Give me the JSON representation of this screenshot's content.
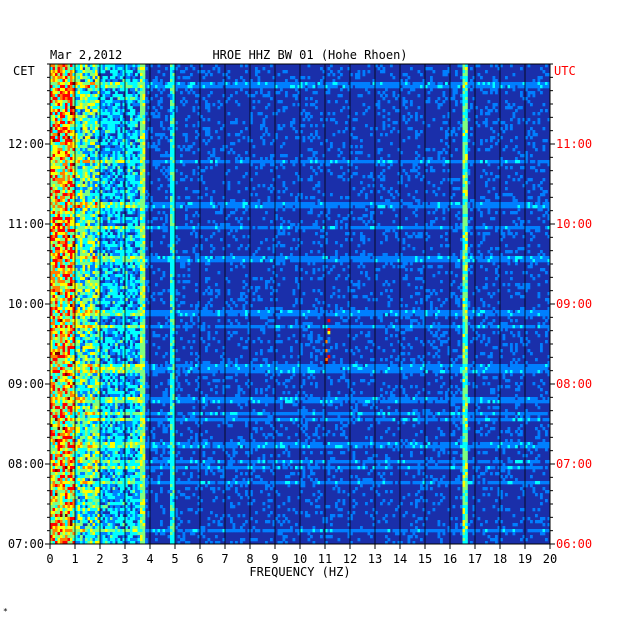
{
  "chart_data": {
    "type": "heatmap",
    "date": "Mar 2,2012",
    "title": "HROE HHZ BW 01 (Hohe Rhoen)",
    "left_axis_label": "CET",
    "right_axis_label": "UTC",
    "xlabel": "FREQUENCY (HZ)",
    "xlim": [
      0,
      20
    ],
    "x_ticks": [
      "0",
      "1",
      "2",
      "3",
      "4",
      "5",
      "6",
      "7",
      "8",
      "9",
      "10",
      "11",
      "12",
      "13",
      "14",
      "15",
      "16",
      "17",
      "18",
      "19",
      "20"
    ],
    "time_range_utc_hours": [
      6.0,
      12.0
    ],
    "cet_tick_labels": [
      "07:00",
      "08:00",
      "09:00",
      "10:00",
      "11:00",
      "12:00"
    ],
    "utc_tick_labels": [
      "06:00",
      "07:00",
      "08:00",
      "09:00",
      "10:00",
      "11:00"
    ],
    "colormap": [
      "#00007f",
      "#0000ff",
      "#007fff",
      "#00ffff",
      "#7fff7f",
      "#ffff00",
      "#ff7f00",
      "#ff0000",
      "#7f0000"
    ],
    "background_color": "#1a2faa",
    "utc_label_color": "#ff0000",
    "grid": true,
    "features": [
      {
        "description": "low-frequency noise band",
        "freq_hz": [
          0.1,
          1.0
        ],
        "level": "high"
      },
      {
        "description": "microseism band",
        "freq_hz": [
          1.0,
          3.8
        ],
        "level": "medium"
      },
      {
        "description": "persistent line",
        "freq_hz": 3.7,
        "level": "medium"
      },
      {
        "description": "persistent line",
        "freq_hz": 4.9,
        "level": "medium"
      },
      {
        "description": "railway line",
        "freq_hz": 16.6,
        "level": "medium"
      },
      {
        "description": "transient signals",
        "freq_hz": 11.1,
        "utc_hours": [
          8.2,
          9.0
        ],
        "level": "high"
      }
    ],
    "footer_mark": "*"
  }
}
